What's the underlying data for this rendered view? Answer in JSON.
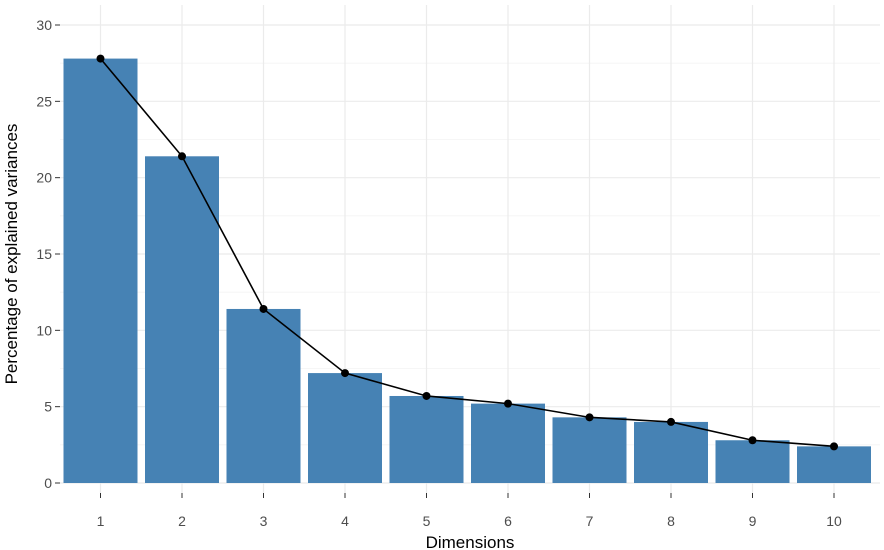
{
  "chart_data": {
    "type": "bar",
    "title": "",
    "xlabel": "Dimensions",
    "ylabel": "Percentage of explained variances",
    "categories": [
      "1",
      "2",
      "3",
      "4",
      "5",
      "6",
      "7",
      "8",
      "9",
      "10"
    ],
    "values": [
      27.8,
      21.4,
      11.4,
      7.2,
      5.7,
      5.2,
      4.3,
      4.0,
      2.8,
      2.4
    ],
    "ylim": [
      0,
      30
    ],
    "yticks": [
      0,
      5,
      10,
      15,
      20,
      25,
      30
    ],
    "ytick_labels": [
      "0",
      "5",
      "10",
      "15",
      "20",
      "25",
      "30"
    ],
    "overlay": "line with points through bar tops",
    "grid": true,
    "legend": "none",
    "colors": {
      "bar": "#4682b4",
      "line": "#000000",
      "point": "#000000",
      "grid": "#ebebeb"
    }
  }
}
